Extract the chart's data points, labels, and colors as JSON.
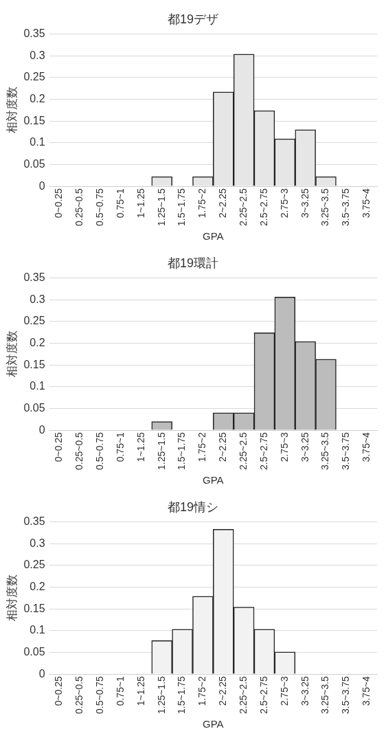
{
  "chart_data": [
    {
      "type": "bar",
      "title": "都19デザ",
      "xlabel": "GPA",
      "ylabel": "相対度数",
      "categories": [
        "0~0.25",
        "0.25~0.5",
        "0.5~0.75",
        "0.75~1",
        "1~1.25",
        "1.25~1.5",
        "1.5~1.75",
        "1.75~2",
        "2~2.25",
        "2.25~2.5",
        "2.5~2.75",
        "2.75~3",
        "3~3.25",
        "3.25~3.5",
        "3.5~3.75",
        "3.75~4"
      ],
      "values": [
        0,
        0,
        0,
        0,
        0,
        0.022,
        0,
        0.022,
        0.217,
        0.304,
        0.174,
        0.109,
        0.13,
        0.022,
        0,
        0
      ],
      "color": "#e6e6e6",
      "ylim": [
        0,
        0.35
      ],
      "yticks": [
        0,
        0.05,
        0.1,
        0.15,
        0.2,
        0.25,
        0.3,
        0.35
      ],
      "grid": "y"
    },
    {
      "type": "bar",
      "title": "都19環計",
      "xlabel": "GPA",
      "ylabel": "相対度数",
      "categories": [
        "0~0.25",
        "0.25~0.5",
        "0.5~0.75",
        "0.75~1",
        "1~1.25",
        "1.25~1.5",
        "1.5~1.75",
        "1.75~2",
        "2~2.25",
        "2.25~2.5",
        "2.5~2.75",
        "2.75~3",
        "3~3.25",
        "3.25~3.5",
        "3.5~3.75",
        "3.75~4"
      ],
      "values": [
        0,
        0,
        0,
        0,
        0,
        0.02,
        0,
        0,
        0.04,
        0.04,
        0.224,
        0.306,
        0.204,
        0.163,
        0,
        0
      ],
      "color": "#bcbcbc",
      "ylim": [
        0,
        0.35
      ],
      "yticks": [
        0,
        0.05,
        0.1,
        0.15,
        0.2,
        0.25,
        0.3,
        0.35
      ],
      "grid": "y"
    },
    {
      "type": "bar",
      "title": "都19情シ",
      "xlabel": "GPA",
      "ylabel": "相対度数",
      "categories": [
        "0~0.25",
        "0.25~0.5",
        "0.5~0.75",
        "0.75~1",
        "1~1.25",
        "1.25~1.5",
        "1.5~1.75",
        "1.75~2",
        "2~2.25",
        "2.25~2.5",
        "2.5~2.75",
        "2.75~3",
        "3~3.25",
        "3.25~3.5",
        "3.5~3.75",
        "3.75~4"
      ],
      "values": [
        0,
        0,
        0,
        0,
        0,
        0.077,
        0.103,
        0.179,
        0.333,
        0.154,
        0.103,
        0.051,
        0,
        0,
        0,
        0
      ],
      "color": "#f2f2f2",
      "ylim": [
        0,
        0.35
      ],
      "yticks": [
        0,
        0.05,
        0.1,
        0.15,
        0.2,
        0.25,
        0.3,
        0.35
      ],
      "grid": "y"
    }
  ]
}
